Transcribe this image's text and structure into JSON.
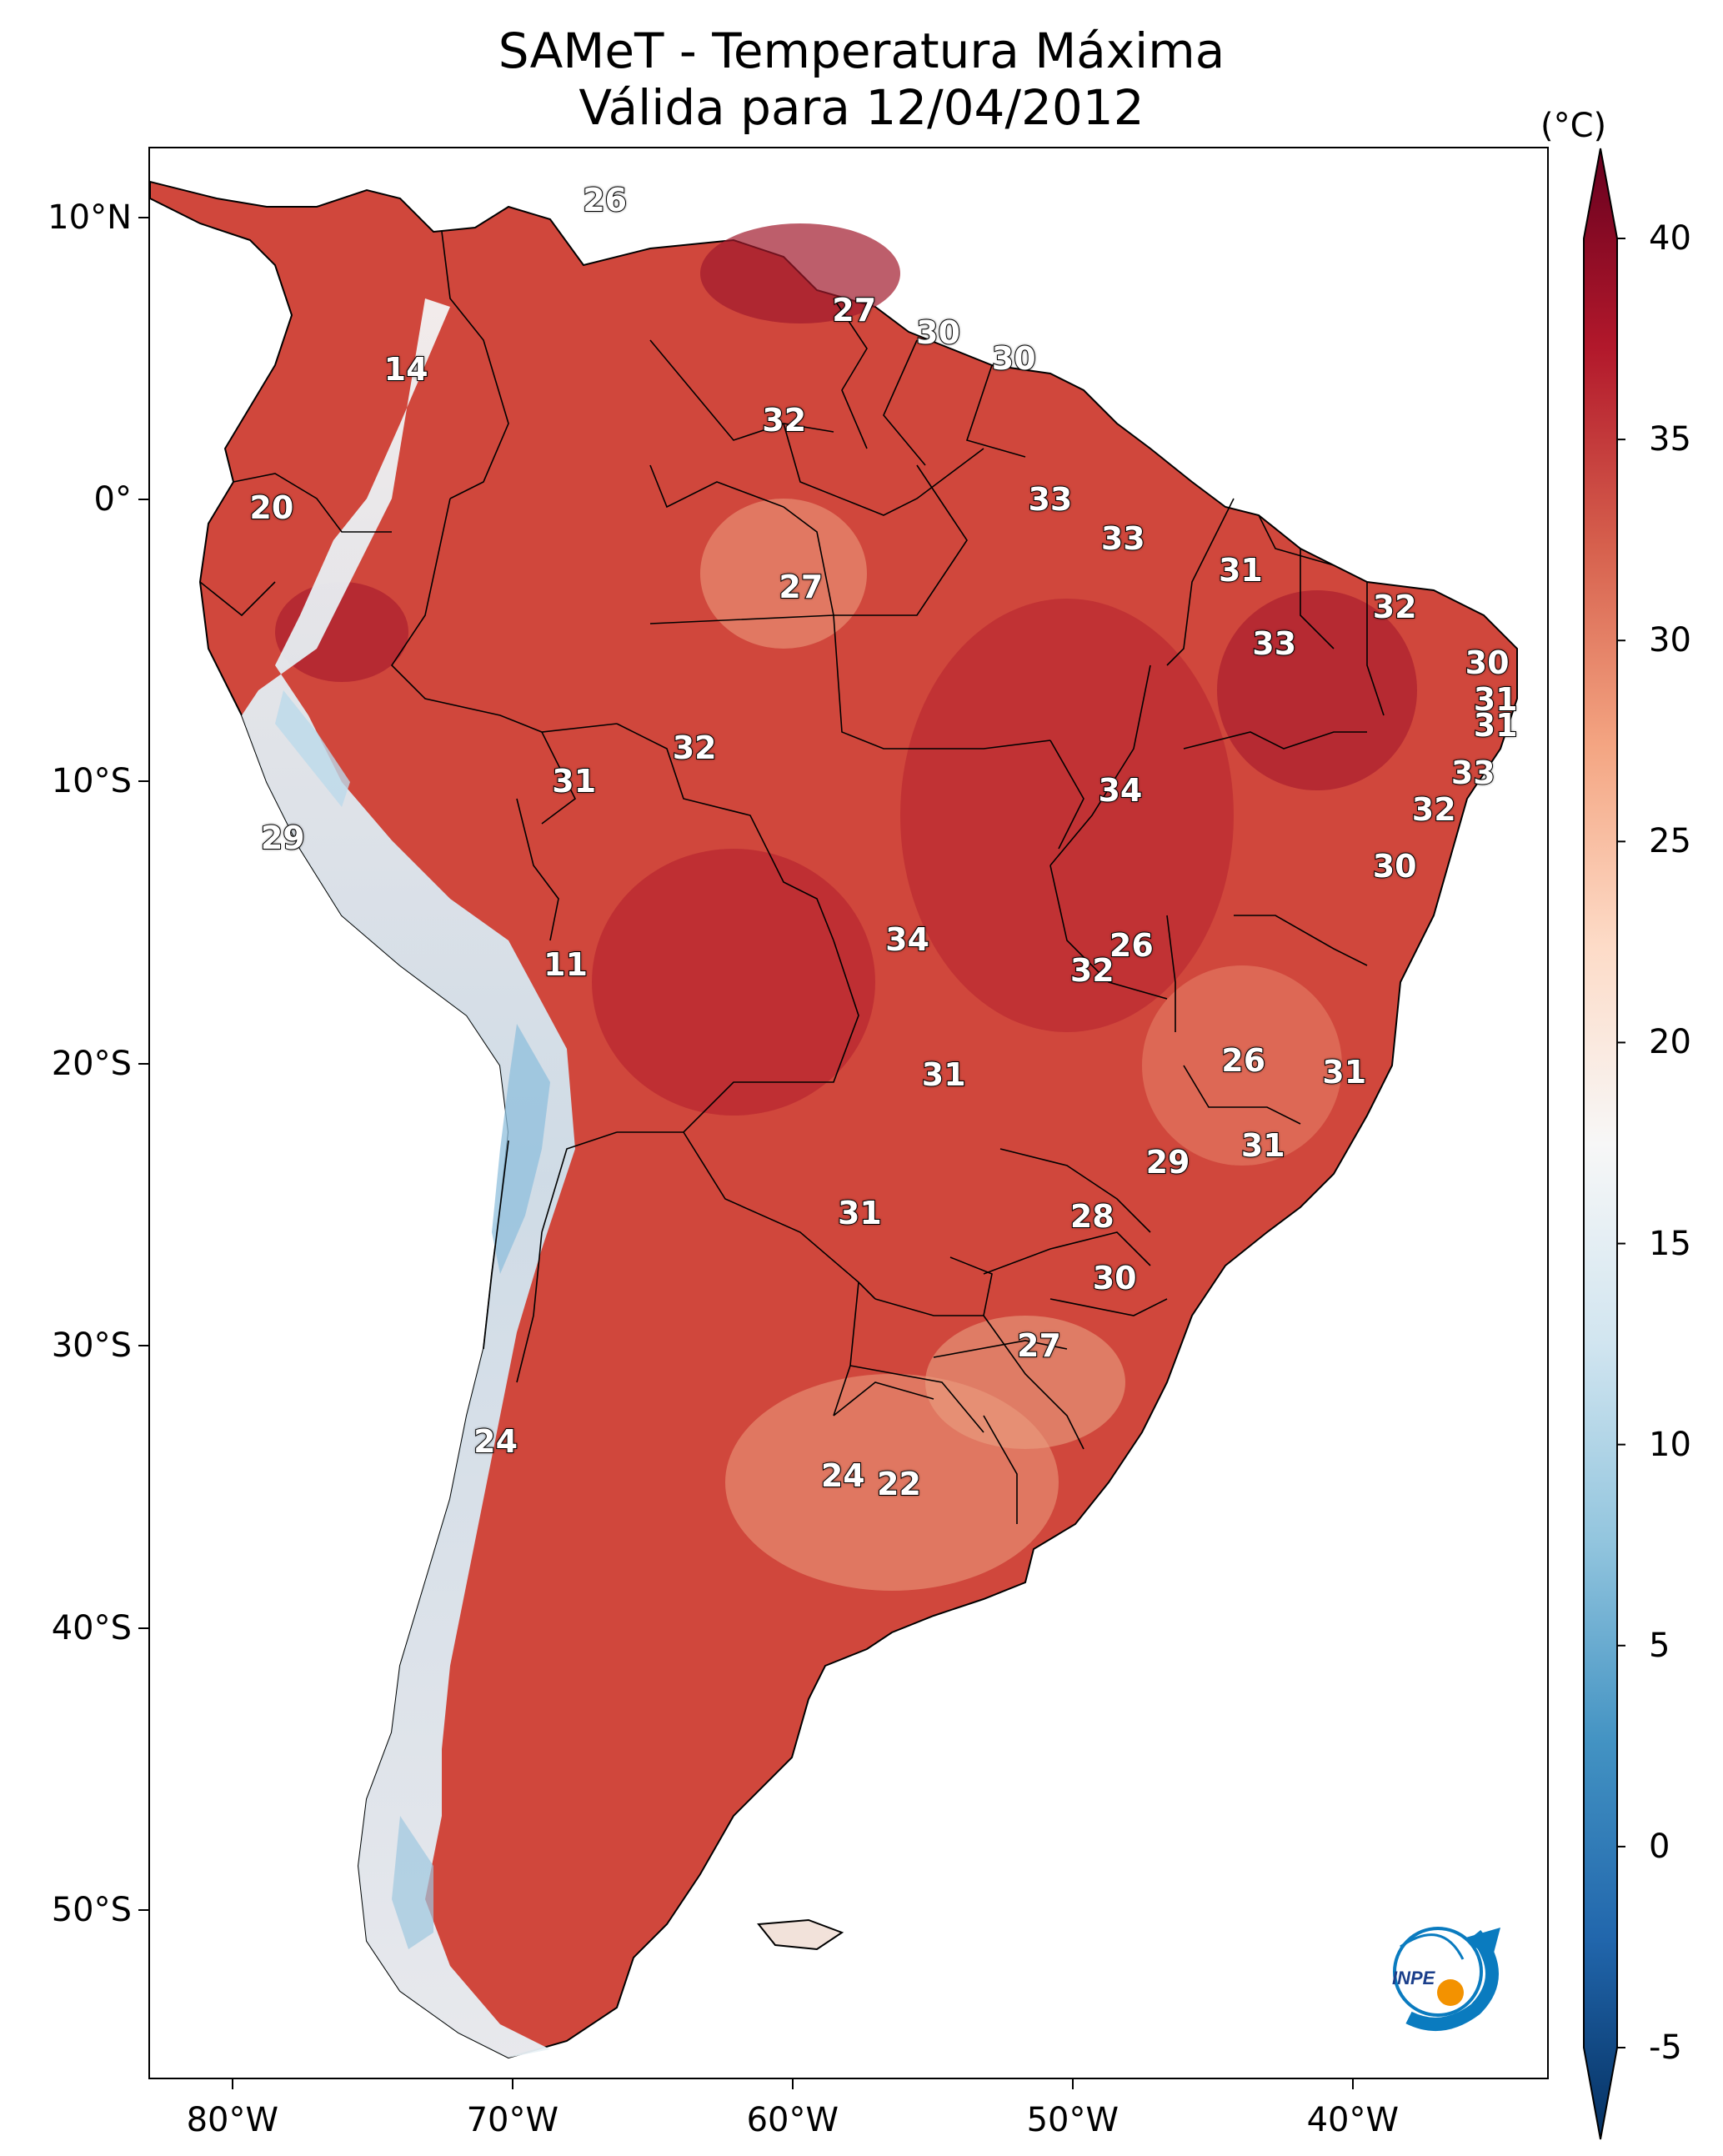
{
  "title": {
    "line1": "SAMeT - Temperatura Máxima",
    "line2": "Válida para 12/04/2012"
  },
  "map": {
    "extent": {
      "lon": [
        -83,
        -33
      ],
      "lat": [
        -56,
        12.5
      ]
    },
    "lat_ticks": [
      {
        "label": "10°N",
        "lat": 10
      },
      {
        "label": "0°",
        "lat": 0
      },
      {
        "label": "10°S",
        "lat": -10
      },
      {
        "label": "20°S",
        "lat": -20
      },
      {
        "label": "30°S",
        "lat": -30
      },
      {
        "label": "40°S",
        "lat": -40
      },
      {
        "label": "50°S",
        "lat": -50
      }
    ],
    "lon_ticks": [
      {
        "label": "80°W",
        "lon": -80
      },
      {
        "label": "70°W",
        "lon": -70
      },
      {
        "label": "60°W",
        "lon": -60
      },
      {
        "label": "50°W",
        "lon": -50
      },
      {
        "label": "40°W",
        "lon": -40
      }
    ],
    "station_values": [
      {
        "text": "26",
        "lon": -66.7,
        "lat": 10.6
      },
      {
        "text": "27",
        "lon": -57.8,
        "lat": 6.7
      },
      {
        "text": "30",
        "lon": -54.8,
        "lat": 5.9
      },
      {
        "text": "30",
        "lon": -52.1,
        "lat": 5.0
      },
      {
        "text": "14",
        "lon": -73.8,
        "lat": 4.6
      },
      {
        "text": "32",
        "lon": -60.3,
        "lat": 2.8
      },
      {
        "text": "33",
        "lon": -50.8,
        "lat": 0.0
      },
      {
        "text": "20",
        "lon": -78.6,
        "lat": -0.3
      },
      {
        "text": "33",
        "lon": -48.2,
        "lat": -1.4
      },
      {
        "text": "31",
        "lon": -44.0,
        "lat": -2.5
      },
      {
        "text": "27",
        "lon": -59.7,
        "lat": -3.1
      },
      {
        "text": "32",
        "lon": -38.5,
        "lat": -3.8
      },
      {
        "text": "33",
        "lon": -42.8,
        "lat": -5.1
      },
      {
        "text": "30",
        "lon": -35.2,
        "lat": -5.8
      },
      {
        "text": "31",
        "lon": -34.9,
        "lat": -7.1
      },
      {
        "text": "31",
        "lon": -34.9,
        "lat": -8.0
      },
      {
        "text": "32",
        "lon": -63.5,
        "lat": -8.8
      },
      {
        "text": "33",
        "lon": -35.7,
        "lat": -9.7
      },
      {
        "text": "34",
        "lon": -48.3,
        "lat": -10.3
      },
      {
        "text": "31",
        "lon": -67.8,
        "lat": -10.0
      },
      {
        "text": "32",
        "lon": -37.1,
        "lat": -11.0
      },
      {
        "text": "29",
        "lon": -78.2,
        "lat": -12.0
      },
      {
        "text": "30",
        "lon": -38.5,
        "lat": -13.0
      },
      {
        "text": "34",
        "lon": -55.9,
        "lat": -15.6
      },
      {
        "text": "26",
        "lon": -47.9,
        "lat": -15.8
      },
      {
        "text": "11",
        "lon": -68.1,
        "lat": -16.5
      },
      {
        "text": "32",
        "lon": -49.3,
        "lat": -16.7
      },
      {
        "text": "26",
        "lon": -43.9,
        "lat": -19.9
      },
      {
        "text": "31",
        "lon": -40.3,
        "lat": -20.3
      },
      {
        "text": "31",
        "lon": -54.6,
        "lat": -20.4
      },
      {
        "text": "31",
        "lon": -43.2,
        "lat": -22.9
      },
      {
        "text": "29",
        "lon": -46.6,
        "lat": -23.5
      },
      {
        "text": "31",
        "lon": -57.6,
        "lat": -25.3
      },
      {
        "text": "28",
        "lon": -49.3,
        "lat": -25.4
      },
      {
        "text": "30",
        "lon": -48.5,
        "lat": -27.6
      },
      {
        "text": "27",
        "lon": -51.2,
        "lat": -30.0
      },
      {
        "text": "24",
        "lon": -70.6,
        "lat": -33.4
      },
      {
        "text": "24",
        "lon": -58.2,
        "lat": -34.6
      },
      {
        "text": "22",
        "lon": -56.2,
        "lat": -34.9
      }
    ]
  },
  "colorbar": {
    "unit": "(°C)",
    "min": -5,
    "max": 40,
    "ticks": [
      "-5",
      "0",
      "5",
      "10",
      "15",
      "20",
      "25",
      "30",
      "35",
      "40"
    ],
    "cmap": [
      "#053061",
      "#2166ac",
      "#4393c3",
      "#92c5de",
      "#d1e5f0",
      "#f7f7f7",
      "#fddbc7",
      "#f4a582",
      "#d6604d",
      "#b2182b",
      "#67001f"
    ]
  },
  "logo": {
    "text": "INPE",
    "accent": "#f39200",
    "brand": "#0a7bbf"
  }
}
